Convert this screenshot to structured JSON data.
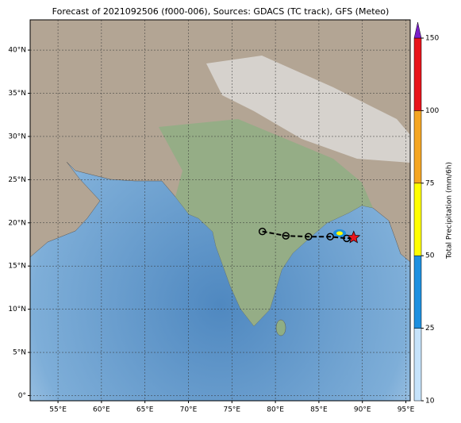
{
  "chart_data": {
    "type": "map",
    "title": "Forecast of 2021092506 (f000-006), Sources: GDACS (TC track), GFS (Meteo)",
    "xlim": [
      51.8,
      95.5
    ],
    "ylim": [
      -0.6,
      43.5
    ],
    "grid": true,
    "xticks": [
      {
        "value": 55,
        "label": "55°E"
      },
      {
        "value": 60,
        "label": "60°E"
      },
      {
        "value": 65,
        "label": "65°E"
      },
      {
        "value": 70,
        "label": "70°E"
      },
      {
        "value": 75,
        "label": "75°E"
      },
      {
        "value": 80,
        "label": "80°E"
      },
      {
        "value": 85,
        "label": "85°E"
      },
      {
        "value": 90,
        "label": "90°E"
      },
      {
        "value": 95,
        "label": "95°E"
      }
    ],
    "yticks": [
      {
        "value": 0,
        "label": "0°"
      },
      {
        "value": 5,
        "label": "5°N"
      },
      {
        "value": 10,
        "label": "10°N"
      },
      {
        "value": 15,
        "label": "15°N"
      },
      {
        "value": 20,
        "label": "20°N"
      },
      {
        "value": 25,
        "label": "25°N"
      },
      {
        "value": 30,
        "label": "30°N"
      },
      {
        "value": 35,
        "label": "35°N"
      },
      {
        "value": 40,
        "label": "40°N"
      }
    ],
    "colorbar": {
      "label": "Total Precipitation (mm/6h)",
      "ticks": [
        10,
        25,
        50,
        75,
        100,
        150
      ],
      "colors": [
        "#c6e3fb",
        "#1e90e0",
        "#ffff00",
        "#f5a623",
        "#e8141c"
      ],
      "extend_color": "#7b1fc8"
    },
    "track": {
      "lon": [
        78.5,
        81.2,
        83.8,
        86.3,
        88.2,
        89.0
      ],
      "lat": [
        19.0,
        18.5,
        18.4,
        18.4,
        18.2,
        18.3
      ]
    }
  }
}
